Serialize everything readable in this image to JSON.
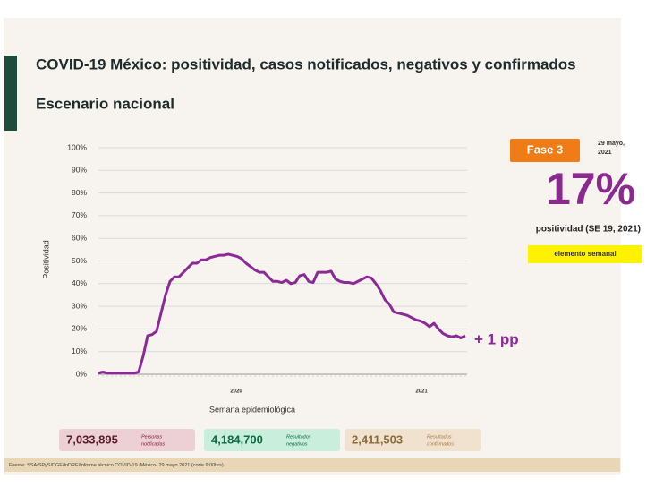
{
  "chart_data": {
    "type": "line",
    "title": "COVID-19 México: positividad, casos notificados, negativos y confirmados",
    "subtitle": "Escenario nacional",
    "y_label": "Positividad",
    "x_label": "Semana epidemiológica",
    "year_labels": [
      "2020",
      "2021"
    ],
    "annotation": "+ 1 pp",
    "categories": [
      null,
      null,
      null,
      null,
      null,
      null,
      null,
      null,
      null,
      null,
      null,
      null,
      null,
      null,
      null,
      null,
      null,
      null,
      null,
      null,
      null,
      null,
      null,
      null,
      null,
      null,
      null,
      null,
      null,
      null,
      null,
      null,
      null,
      null,
      null,
      null,
      null,
      null,
      null,
      null,
      null,
      null,
      null,
      null,
      null,
      null,
      null,
      null,
      null,
      null,
      null,
      null,
      null,
      null,
      null,
      null,
      null,
      null,
      null,
      null,
      null,
      null,
      null,
      null,
      null,
      null,
      null,
      null,
      null,
      null,
      null,
      null,
      null,
      null,
      null,
      null,
      null,
      null,
      null,
      null,
      null,
      null,
      null
    ],
    "series": [
      {
        "name": "Positividad",
        "color": "#8b2a96",
        "values": [
          0.5,
          1,
          0.5,
          0.5,
          0.5,
          0.5,
          0.5,
          0.5,
          0.5,
          1,
          8,
          17,
          17.5,
          19,
          27,
          35,
          41,
          43,
          43,
          45,
          47,
          49,
          49,
          50.5,
          50.5,
          51.5,
          52,
          52.5,
          52.5,
          53,
          52.5,
          52,
          51,
          49,
          47.5,
          46,
          45,
          45,
          43,
          41,
          41,
          40.5,
          41.5,
          40,
          40.5,
          43.5,
          44,
          41,
          40.5,
          45,
          45,
          45,
          45.5,
          42,
          41,
          40.5,
          40.5,
          40,
          41,
          42,
          43,
          42.5,
          40,
          37,
          33,
          31,
          27.5,
          27,
          26.5,
          26,
          25,
          24,
          23.5,
          22.5,
          21,
          22.5,
          20,
          18,
          17,
          16.5,
          17,
          16,
          17
        ]
      }
    ],
    "ylim": [
      0,
      100
    ],
    "yticks": [
      {
        "value": 0,
        "label": "0%"
      },
      {
        "value": 10,
        "label": "10%"
      },
      {
        "value": 20,
        "label": "20%"
      },
      {
        "value": 30,
        "label": "30%"
      },
      {
        "value": 40,
        "label": "40%"
      },
      {
        "value": 50,
        "label": "50%"
      },
      {
        "value": 60,
        "label": "60%"
      },
      {
        "value": 70,
        "label": "70%"
      },
      {
        "value": 80,
        "label": "80%"
      },
      {
        "value": 90,
        "label": "90%"
      },
      {
        "value": 100,
        "label": "100%"
      }
    ],
    "grid": true
  },
  "panel": {
    "phase": "Fase 3",
    "date": [
      "29 mayo,",
      "2021"
    ],
    "kpi": "17%",
    "kpi_label": "positividad (SE 19, 2021)",
    "note": "elemento semanal"
  },
  "summary": [
    {
      "value": "7,033,895",
      "label": [
        "Personas",
        "notificadas"
      ]
    },
    {
      "value": "4,184,700",
      "label": [
        "Resultados",
        "negativos"
      ]
    },
    {
      "value": "2,411,503",
      "label": [
        "Resultados",
        "confirmados"
      ]
    }
  ],
  "footer": "Fuente: SSA/SPyS/DGE/InDRE/Informe técnico.COVID-19 /México- 29 mayo 2021 (corte 9:00hrs)"
}
